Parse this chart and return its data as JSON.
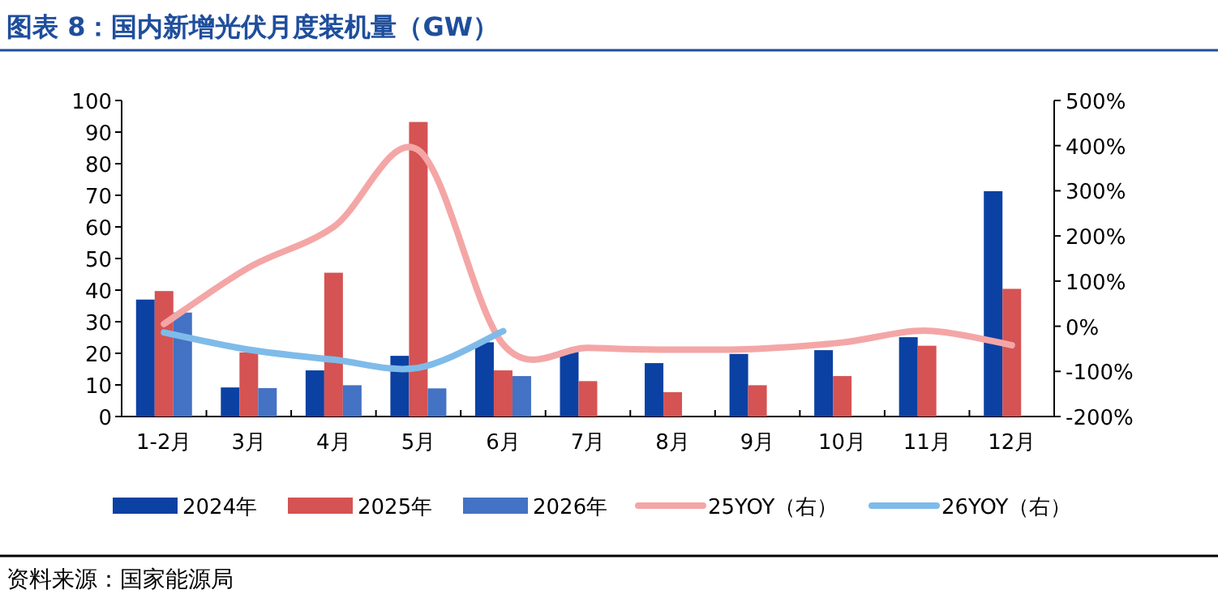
{
  "chart_data": {
    "type": "bar",
    "title": "图表 8：国内新增光伏月度装机量（GW）",
    "categories": [
      "1-2月",
      "3月",
      "4月",
      "5月",
      "6月",
      "7月",
      "8月",
      "9月",
      "10月",
      "11月",
      "12月"
    ],
    "series": [
      {
        "name": "2024年",
        "color": "#0b41a3",
        "values": [
          37,
          9.2,
          14.6,
          19.2,
          23.5,
          21,
          16.9,
          19.8,
          21,
          25.1,
          71.3
        ]
      },
      {
        "name": "2025年",
        "color": "#d55353",
        "values": [
          39.7,
          20.3,
          45.5,
          93.2,
          14.6,
          11.2,
          7.7,
          9.9,
          12.8,
          22.4,
          40.4
        ]
      },
      {
        "name": "2026年",
        "color": "#4472c4",
        "values": [
          32.9,
          9,
          9.9,
          8.9,
          12.8,
          null,
          null,
          null,
          null,
          null,
          null
        ]
      },
      {
        "name": "25YOY（右）",
        "type": "line",
        "axis": "y2",
        "color": "#f4a6a6",
        "values": [
          5,
          130,
          220,
          390,
          -40,
          -48,
          -52,
          -50,
          -36,
          -10,
          -42
        ]
      },
      {
        "name": "26YOY（右）",
        "type": "line",
        "axis": "y2",
        "color": "#7fbbe9",
        "values": [
          -14,
          -52,
          -74,
          -92,
          -11,
          null,
          null,
          null,
          null,
          null,
          null
        ]
      }
    ],
    "ylim": [
      0,
      100
    ],
    "yticks": [
      0,
      10,
      20,
      30,
      40,
      50,
      60,
      70,
      80,
      90,
      100
    ],
    "y2lim": [
      -200,
      500
    ],
    "y2ticks": [
      {
        "value": -200,
        "label": "-200%"
      },
      {
        "value": -100,
        "label": "-100%"
      },
      {
        "value": 0,
        "label": "0%"
      },
      {
        "value": 100,
        "label": "100%"
      },
      {
        "value": 200,
        "label": "200%"
      },
      {
        "value": 300,
        "label": "300%"
      },
      {
        "value": 400,
        "label": "400%"
      },
      {
        "value": 500,
        "label": "500%"
      }
    ],
    "legend": "bottom",
    "annotations": [
      "资料来源：国家能源局"
    ]
  }
}
